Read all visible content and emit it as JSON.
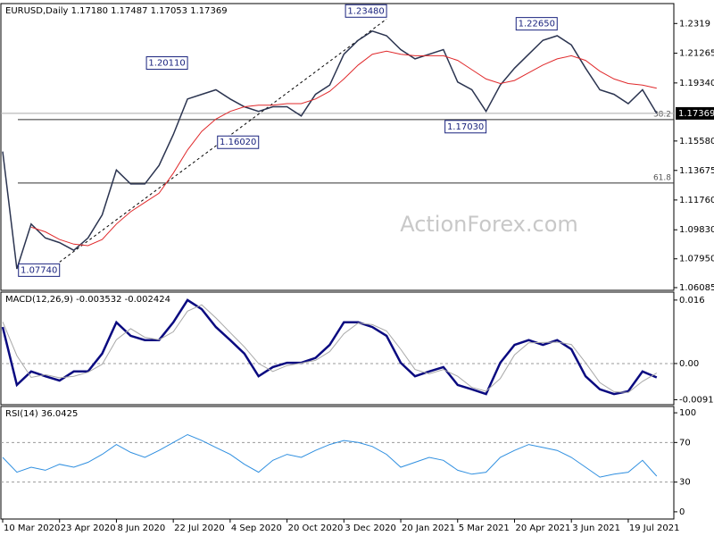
{
  "chart_data": [
    {
      "type": "line",
      "title": "EURUSD,Daily  1.17180 1.17487 1.17053 1.17369",
      "watermark": "ActionForex.com",
      "categories": [
        "10 Mar 2020",
        null,
        null,
        null,
        "23 Apr 2020",
        null,
        null,
        null,
        "8 Jun 2020",
        null,
        null,
        null,
        "22 Jul 2020",
        null,
        null,
        null,
        "4 Sep 2020",
        null,
        null,
        null,
        "20 Oct 2020",
        null,
        null,
        null,
        "3 Dec 2020",
        null,
        null,
        null,
        "20 Jan 2021",
        null,
        null,
        null,
        "5 Mar 2021",
        null,
        null,
        null,
        "20 Apr 2021",
        null,
        null,
        null,
        "3 Jun 2021",
        null,
        null,
        null,
        "19 Jul 2021",
        null,
        null
      ],
      "series": [
        {
          "color": "#2b3450",
          "values": [
            1.149,
            1.073,
            1.102,
            1.093,
            1.09,
            1.085,
            1.093,
            1.108,
            1.137,
            1.128,
            1.128,
            1.14,
            1.16,
            1.183,
            1.186,
            1.189,
            1.183,
            1.178,
            1.175,
            1.178,
            1.178,
            1.172,
            1.186,
            1.192,
            1.212,
            1.221,
            1.227,
            1.224,
            1.215,
            1.209,
            1.212,
            1.215,
            1.194,
            1.189,
            1.175,
            1.192,
            1.203,
            1.212,
            1.221,
            1.224,
            1.218,
            1.203,
            1.189,
            1.186,
            1.18,
            1.189,
            1.17369
          ]
        },
        {
          "color": "#e0292b",
          "values": [
            null,
            null,
            1.1,
            1.097,
            1.092,
            1.089,
            1.088,
            1.092,
            1.102,
            1.11,
            1.116,
            1.122,
            1.135,
            1.15,
            1.162,
            1.17,
            1.175,
            1.178,
            1.179,
            1.179,
            1.18,
            1.18,
            1.183,
            1.188,
            1.196,
            1.205,
            1.212,
            1.214,
            1.212,
            1.211,
            1.211,
            1.211,
            1.208,
            1.202,
            1.196,
            1.193,
            1.195,
            1.2,
            1.205,
            1.209,
            1.211,
            1.208,
            1.201,
            1.196,
            1.193,
            1.192,
            1.19
          ]
        }
      ],
      "annotations": [
        {
          "value": 1.0774,
          "label": "1.07740",
          "index": 4
        },
        {
          "value": 1.2011,
          "label": "1.20110",
          "index": 13
        },
        {
          "value": 1.1602,
          "label": "1.16020",
          "index": 18
        },
        {
          "value": 1.2348,
          "label": "1.23480",
          "index": 27
        },
        {
          "value": 1.1703,
          "label": "1.17030",
          "index": 34
        },
        {
          "value": 1.2265,
          "label": "1.22650",
          "index": 39
        }
      ],
      "levels": [
        {
          "value": 1.1697,
          "label": "38.2"
        },
        {
          "value": 1.1286,
          "label": "61.8"
        }
      ],
      "last": 1.17369,
      "ylim": [
        1.0591,
        1.2448
      ],
      "yticks": [
        1.2319,
        1.21265,
        {
          "value": 1.1934,
          "label": "1.19340"
        },
        {
          "value": 1.1558,
          "label": "1.15580"
        },
        1.13675,
        {
          "value": 1.1176,
          "label": "1.11760"
        },
        {
          "value": 1.0983,
          "label": "1.09830"
        },
        {
          "value": 1.0795,
          "label": "1.07950"
        },
        1.06085
      ]
    },
    {
      "type": "line",
      "title": "MACD(12,26,9) -0.003532 -0.002424",
      "series": [
        {
          "color": "#0a0a80",
          "values": [
            0.0092,
            -0.0054,
            -0.002,
            -0.0032,
            -0.0043,
            -0.002,
            -0.002,
            0.0025,
            0.0104,
            0.007,
            0.0059,
            0.0059,
            0.0104,
            0.016,
            0.0137,
            0.0092,
            0.0059,
            0.0025,
            -0.0032,
            -0.0009,
            0.0002,
            0.0002,
            0.0014,
            0.0047,
            0.0104,
            0.0104,
            0.0092,
            0.007,
            0.0002,
            -0.0032,
            -0.002,
            -0.0009,
            -0.0054,
            -0.0065,
            -0.0077,
            0.0002,
            0.0047,
            0.0059,
            0.0047,
            0.0059,
            0.0036,
            -0.0032,
            -0.0065,
            -0.0077,
            -0.007,
            -0.002,
            -0.0035
          ]
        },
        {
          "color": "#a8a8a8",
          "values": [
            0.0105,
            0.002,
            -0.0035,
            -0.0028,
            -0.0036,
            -0.0032,
            -0.0022,
            -0.0002,
            0.006,
            0.0088,
            0.0066,
            0.006,
            0.008,
            0.0132,
            0.0148,
            0.0115,
            0.0078,
            0.0042,
            0.0,
            -0.002,
            -0.0005,
            0.0001,
            0.0008,
            0.003,
            0.0075,
            0.0102,
            0.0098,
            0.0082,
            0.0036,
            -0.0015,
            -0.0026,
            -0.0015,
            -0.0032,
            -0.006,
            -0.007,
            -0.0038,
            0.0022,
            0.0052,
            0.0053,
            0.0054,
            0.0048,
            0.0002,
            -0.0048,
            -0.0071,
            -0.0073,
            -0.0045,
            -0.0024
          ]
        }
      ],
      "ylim": [
        -0.01037,
        0.018
      ],
      "yticks": [
        0.016,
        {
          "value": 0,
          "label": "0.00"
        },
        -0.009116
      ]
    },
    {
      "type": "line",
      "title": "RSI(14) 36.0425",
      "series": [
        {
          "color": "#2f8fe0",
          "values": [
            55,
            40,
            45,
            42,
            48,
            45,
            50,
            58,
            68,
            60,
            55,
            62,
            70,
            78,
            72,
            65,
            58,
            48,
            40,
            52,
            58,
            55,
            62,
            68,
            72,
            70,
            66,
            58,
            45,
            50,
            55,
            52,
            42,
            38,
            40,
            55,
            62,
            68,
            65,
            62,
            55,
            45,
            35,
            38,
            40,
            52,
            36.04
          ]
        }
      ],
      "ylim": [
        -7.3,
        106.4
      ],
      "yticks": [
        100,
        70,
        30,
        0
      ],
      "dashed": [
        70,
        30
      ]
    }
  ]
}
